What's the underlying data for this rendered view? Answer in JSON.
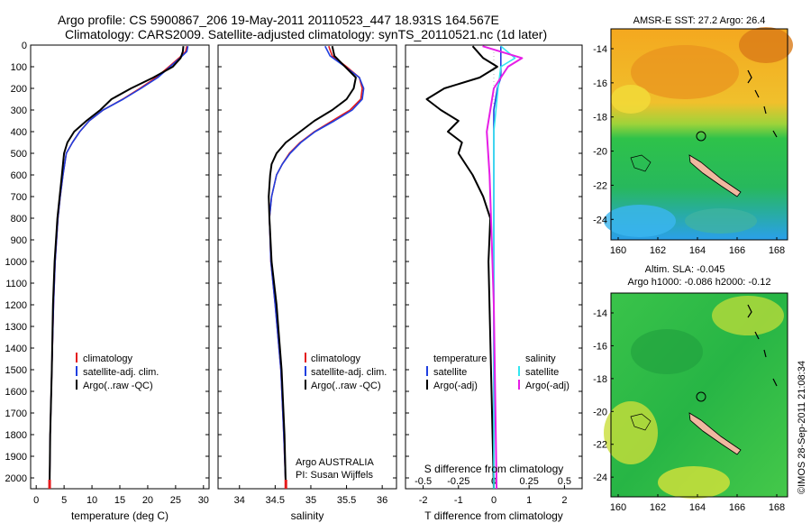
{
  "title_line1": "Argo profile: CS 5900867_206 19-May-2011 20110523_447 18.931S 164.567E",
  "title_line2": "Climatology: CARS2009. Satellite-adjusted climatology: synTS_20110521.nc (1d later)",
  "colors": {
    "clim": "#e41a1c",
    "sat": "#1f3fe0",
    "argo": "#000000",
    "sat_s": "#33e6f0",
    "argo_s": "#e61ee6"
  },
  "chart_data": [
    {
      "type": "line",
      "id": "temperature",
      "xlabel": "temperature (deg C)",
      "xlim": [
        -1,
        31
      ],
      "xticks": [
        0,
        5,
        10,
        15,
        20,
        25,
        30
      ],
      "ylim": [
        2050,
        0
      ],
      "yticks": [
        0,
        100,
        200,
        300,
        400,
        500,
        600,
        700,
        800,
        900,
        1000,
        1100,
        1200,
        1300,
        1400,
        1500,
        1600,
        1700,
        1800,
        1900,
        2000
      ],
      "legend": [
        "climatology",
        "satellite-adj. clim.",
        "Argo(..raw -QC)"
      ],
      "series": [
        {
          "name": "climatology",
          "color": "clim",
          "x": [
            27.0,
            26.8,
            25.6,
            23.8,
            21.5,
            18.6,
            15.5,
            12.0,
            9.5,
            7.8,
            6.5,
            5.4,
            4.8,
            4.3,
            3.9,
            3.4,
            3.1,
            2.8,
            2.5,
            2.4
          ],
          "y": [
            5,
            30,
            60,
            100,
            150,
            200,
            250,
            300,
            350,
            400,
            450,
            500,
            600,
            700,
            800,
            1000,
            1200,
            1500,
            1800,
            2050
          ]
        },
        {
          "name": "satellite-adj. clim.",
          "color": "sat",
          "x": [
            27.2,
            27.0,
            25.8,
            24.0,
            21.8,
            18.8,
            15.6,
            12.0,
            9.5,
            7.8,
            6.5,
            5.4,
            4.8,
            4.3,
            3.9,
            3.4,
            3.1,
            2.8,
            2.5,
            2.4
          ],
          "y": [
            5,
            30,
            60,
            100,
            150,
            200,
            250,
            300,
            350,
            400,
            450,
            500,
            600,
            700,
            800,
            1000,
            1200,
            1500,
            1800,
            2050
          ]
        },
        {
          "name": "Argo(..raw -QC)",
          "color": "argo",
          "x": [
            26.4,
            26.3,
            25.9,
            24.5,
            21.0,
            17.0,
            13.5,
            11.5,
            9.0,
            6.8,
            5.6,
            5.0,
            4.6,
            4.2,
            3.8,
            3.3,
            3.0,
            2.8,
            2.5,
            2.4
          ],
          "y": [
            5,
            30,
            60,
            100,
            150,
            200,
            250,
            300,
            350,
            400,
            450,
            500,
            600,
            700,
            800,
            1000,
            1200,
            1500,
            1800,
            2050
          ]
        }
      ]
    },
    {
      "type": "line",
      "id": "salinity",
      "xlabel": "salinity",
      "xlim": [
        33.7,
        36.2
      ],
      "xticks": [
        34,
        34.5,
        35,
        35.5,
        36
      ],
      "ylim": [
        2050,
        0
      ],
      "legend": [
        "climatology",
        "satellite-adj. clim.",
        "Argo(..raw -QC)"
      ],
      "annotation": [
        "Argo AUSTRALIA",
        "PI: Susan Wijffels"
      ],
      "series": [
        {
          "name": "climatology",
          "color": "clim",
          "x": [
            35.25,
            35.3,
            35.5,
            35.68,
            35.72,
            35.7,
            35.55,
            35.3,
            35.05,
            34.85,
            34.7,
            34.6,
            34.52,
            34.45,
            34.42,
            34.44,
            34.5,
            34.58,
            34.62,
            34.65
          ],
          "y": [
            5,
            50,
            100,
            150,
            200,
            250,
            300,
            350,
            400,
            450,
            500,
            550,
            600,
            700,
            800,
            1000,
            1200,
            1500,
            1800,
            2050
          ]
        },
        {
          "name": "satellite-adj. clim.",
          "color": "sat",
          "x": [
            35.2,
            35.27,
            35.48,
            35.68,
            35.74,
            35.72,
            35.58,
            35.33,
            35.06,
            34.86,
            34.71,
            34.6,
            34.52,
            34.45,
            34.42,
            34.44,
            34.5,
            34.58,
            34.62,
            34.65
          ],
          "y": [
            5,
            50,
            100,
            150,
            200,
            250,
            300,
            350,
            400,
            450,
            500,
            550,
            600,
            700,
            800,
            1000,
            1200,
            1500,
            1800,
            2050
          ]
        },
        {
          "name": "Argo(..raw -QC)",
          "color": "argo",
          "x": [
            35.3,
            35.33,
            35.48,
            35.63,
            35.6,
            35.5,
            35.3,
            35.05,
            34.85,
            34.65,
            34.52,
            34.45,
            34.43,
            34.41,
            34.42,
            34.45,
            34.52,
            34.59,
            34.63,
            34.65
          ],
          "y": [
            5,
            50,
            100,
            150,
            200,
            250,
            300,
            350,
            400,
            450,
            500,
            550,
            600,
            700,
            800,
            1000,
            1200,
            1500,
            1800,
            2050
          ]
        }
      ]
    },
    {
      "type": "line",
      "id": "difference",
      "xlabel": "T difference from climatology",
      "xlabel_top": "S difference from climatology",
      "xlim": [
        -2.5,
        2.5
      ],
      "xticks": [
        -2,
        -1,
        0,
        1,
        2
      ],
      "xticks_s": [
        -0.5,
        -0.25,
        0,
        0.25,
        0.5
      ],
      "xlim_s": [
        -0.625,
        0.625
      ],
      "ylim": [
        2050,
        0
      ],
      "legend_t": [
        "temperature",
        "satellite",
        "Argo(-adj)"
      ],
      "legend_s": [
        "salinity",
        "satellite",
        "Argo(-adj)"
      ],
      "series": [
        {
          "name": "temperature satellite",
          "color": "sat",
          "x": [
            0.2,
            0.2,
            0.2,
            0.2,
            0.2,
            0.1,
            0.0,
            0.0,
            0.0,
            0.0
          ],
          "y": [
            5,
            30,
            60,
            100,
            150,
            200,
            300,
            500,
            1000,
            2050
          ]
        },
        {
          "name": "temperature Argo(-adj)",
          "color": "argo",
          "x": [
            -0.6,
            -0.3,
            0.1,
            -0.4,
            -1.4,
            -1.9,
            -1.5,
            -1.0,
            -1.3,
            -0.9,
            -1.0,
            -0.6,
            -0.3,
            -0.1,
            -0.15,
            0.0
          ],
          "y": [
            5,
            60,
            100,
            150,
            200,
            250,
            300,
            350,
            400,
            450,
            500,
            600,
            700,
            800,
            1000,
            2050
          ]
        },
        {
          "name": "salinity satellite",
          "color": "sat_s",
          "x": [
            0.05,
            0.15,
            0.05,
            0.03,
            0.0,
            0.0,
            0.0,
            0.0
          ],
          "y": [
            5,
            60,
            100,
            200,
            400,
            600,
            1000,
            2050
          ]
        },
        {
          "name": "salinity Argo(-adj)",
          "color": "argo_s",
          "x": [
            -0.08,
            0.2,
            0.1,
            0.0,
            -0.05,
            -0.03,
            -0.02,
            0.0,
            0.02
          ],
          "y": [
            5,
            60,
            100,
            200,
            400,
            600,
            800,
            1200,
            2050
          ]
        }
      ]
    }
  ],
  "sst_map": {
    "title": "AMSR-E SST: 27.2 Argo: 26.4",
    "xticks": [
      "160",
      "162",
      "164",
      "166",
      "168"
    ],
    "yticks": [
      "-14",
      "-16",
      "-18",
      "-20",
      "-22",
      "-24"
    ]
  },
  "sla_map": {
    "title1": "Altim. SLA: -0.045",
    "title2": "Argo h1000: -0.086 h2000: -0.12",
    "xticks": [
      "160",
      "162",
      "164",
      "166",
      "168"
    ],
    "yticks": [
      "-14",
      "-16",
      "-18",
      "-20",
      "-22",
      "-24"
    ]
  },
  "credit": "©IMOS 28-Sep-2011 21:08:34"
}
